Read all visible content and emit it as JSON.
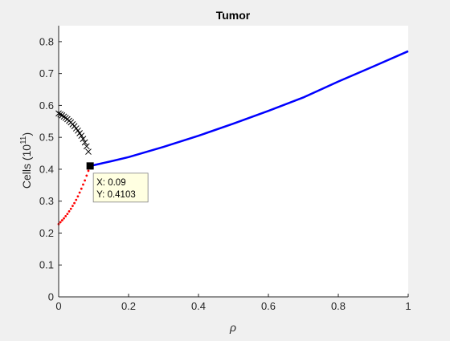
{
  "chart_data": {
    "type": "line",
    "title": "Tumor",
    "xlabel": "ρ",
    "ylabel_main": "Cells  (10",
    "ylabel_exp": "11",
    "ylabel_close": ")",
    "xlim": [
      0,
      1
    ],
    "ylim": [
      0,
      0.85
    ],
    "xticks": [
      "0",
      "0.2",
      "0.4",
      "0.6",
      "0.8",
      "1"
    ],
    "yticks": [
      "0",
      "0.1",
      "0.2",
      "0.3",
      "0.4",
      "0.5",
      "0.6",
      "0.7",
      "0.8"
    ],
    "series": [
      {
        "style": "solid-line",
        "color": "#0000ff",
        "x": [
          0.09,
          0.15,
          0.2,
          0.3,
          0.4,
          0.5,
          0.6,
          0.7,
          0.8,
          0.9,
          1.0
        ],
        "y": [
          0.4103,
          0.425,
          0.438,
          0.47,
          0.505,
          0.543,
          0.583,
          0.625,
          0.675,
          0.722,
          0.77
        ]
      },
      {
        "style": "dots",
        "color": "#ff0000",
        "x": [
          0.0,
          0.005,
          0.01,
          0.015,
          0.02,
          0.025,
          0.03,
          0.035,
          0.04,
          0.045,
          0.05,
          0.055,
          0.06,
          0.065,
          0.07,
          0.075,
          0.08,
          0.085,
          0.09
        ],
        "y": [
          0.228,
          0.234,
          0.24,
          0.246,
          0.253,
          0.26,
          0.268,
          0.276,
          0.285,
          0.294,
          0.304,
          0.315,
          0.327,
          0.339,
          0.352,
          0.365,
          0.38,
          0.395,
          0.4103
        ]
      },
      {
        "style": "x-markers",
        "color": "#000000",
        "x": [
          0.0,
          0.005,
          0.01,
          0.015,
          0.02,
          0.025,
          0.03,
          0.035,
          0.04,
          0.045,
          0.05,
          0.055,
          0.06,
          0.065,
          0.07,
          0.075,
          0.08,
          0.085
        ],
        "y": [
          0.575,
          0.572,
          0.569,
          0.565,
          0.561,
          0.557,
          0.552,
          0.547,
          0.541,
          0.535,
          0.528,
          0.521,
          0.513,
          0.505,
          0.495,
          0.484,
          0.472,
          0.455
        ]
      }
    ],
    "datatip": {
      "point": {
        "x": 0.09,
        "y": 0.4103
      },
      "line1": "X: 0.09",
      "line2": "Y: 0.4103"
    }
  }
}
